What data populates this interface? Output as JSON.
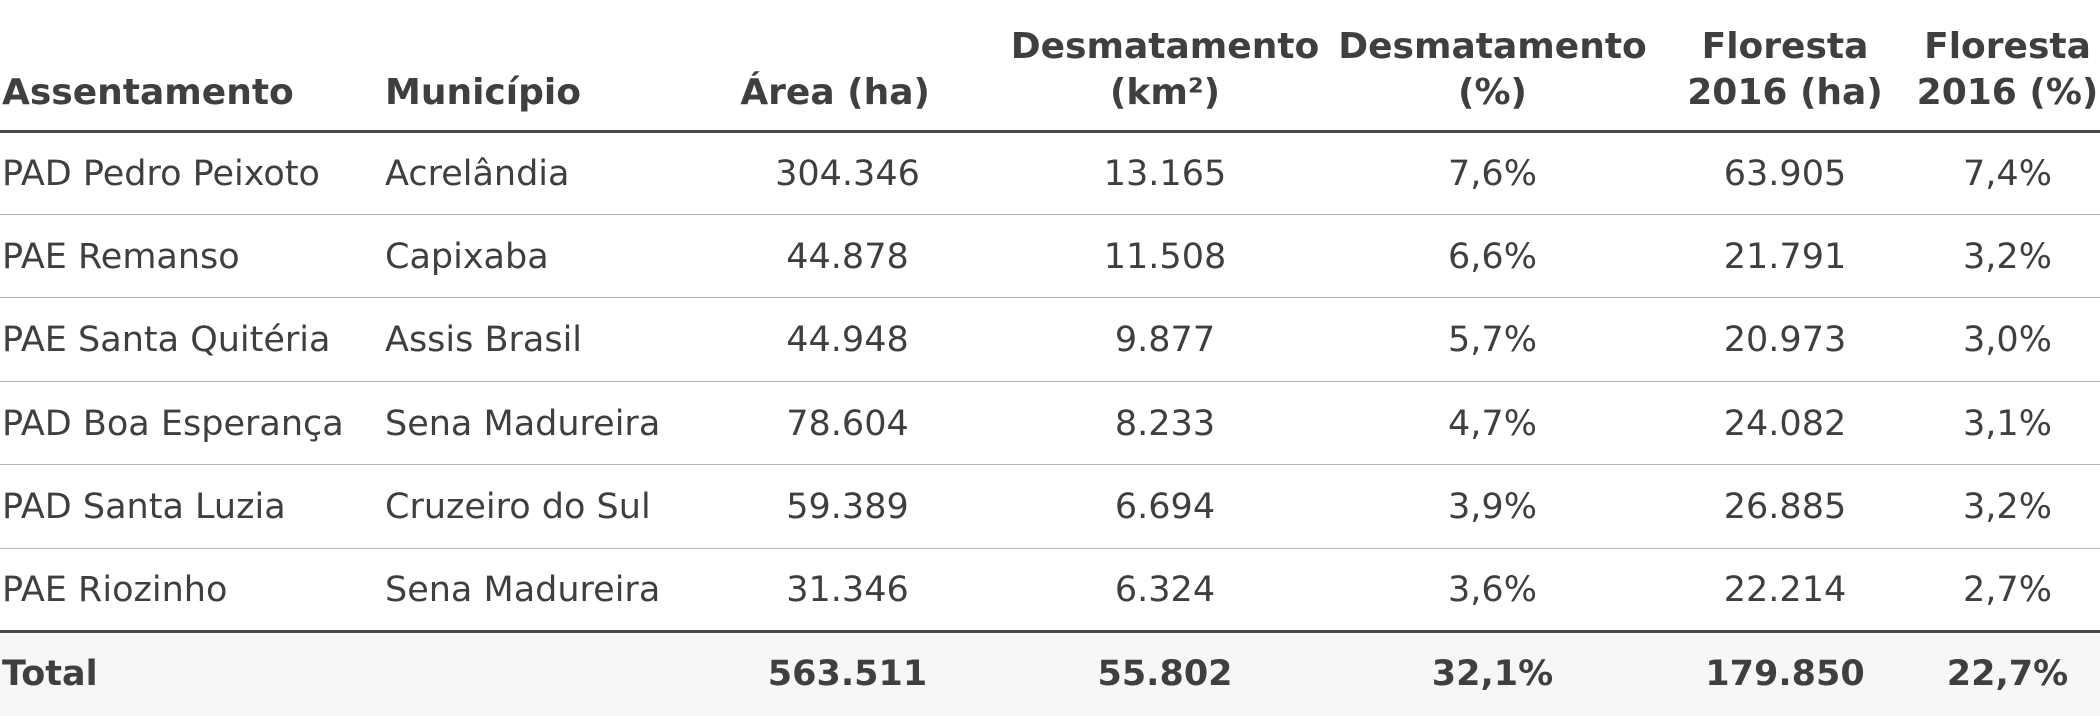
{
  "table": {
    "headers": [
      {
        "line1": "Assentamento",
        "line2": ""
      },
      {
        "line1": "Município",
        "line2": ""
      },
      {
        "line1": "Área (ha)",
        "line2": ""
      },
      {
        "line1": "Desmatamento",
        "line2": "(km²)"
      },
      {
        "line1": "Desmatamento",
        "line2": "(%)"
      },
      {
        "line1": "Floresta",
        "line2": "2016 (ha)"
      },
      {
        "line1": "Floresta",
        "line2": "2016 (%)"
      }
    ],
    "rows": [
      [
        "PAD Pedro Peixoto",
        "Acrelândia",
        "304.346",
        "13.165",
        "7,6%",
        "63.905",
        "7,4%"
      ],
      [
        "PAE Remanso",
        "Capixaba",
        "44.878",
        "11.508",
        "6,6%",
        "21.791",
        "3,2%"
      ],
      [
        "PAE Santa Quitéria",
        "Assis Brasil",
        "44.948",
        "9.877",
        "5,7%",
        "20.973",
        "3,0%"
      ],
      [
        "PAD Boa Esperança",
        "Sena Madureira",
        "78.604",
        "8.233",
        "4,7%",
        "24.082",
        "3,1%"
      ],
      [
        "PAD Santa Luzia",
        "Cruzeiro do Sul",
        "59.389",
        "6.694",
        "3,9%",
        "26.885",
        "3,2%"
      ],
      [
        "PAE Riozinho",
        "Sena Madureira",
        "31.346",
        "6.324",
        "3,6%",
        "22.214",
        "2,7%"
      ]
    ],
    "total": [
      "Total",
      "",
      "563.511",
      "55.802",
      "32,1%",
      "179.850",
      "22,7%"
    ]
  },
  "colors": {
    "text": "#3f3f3f",
    "rule": "#4a4a4a",
    "divider": "#b5b5b5",
    "total_background": "#f7f7f7"
  }
}
